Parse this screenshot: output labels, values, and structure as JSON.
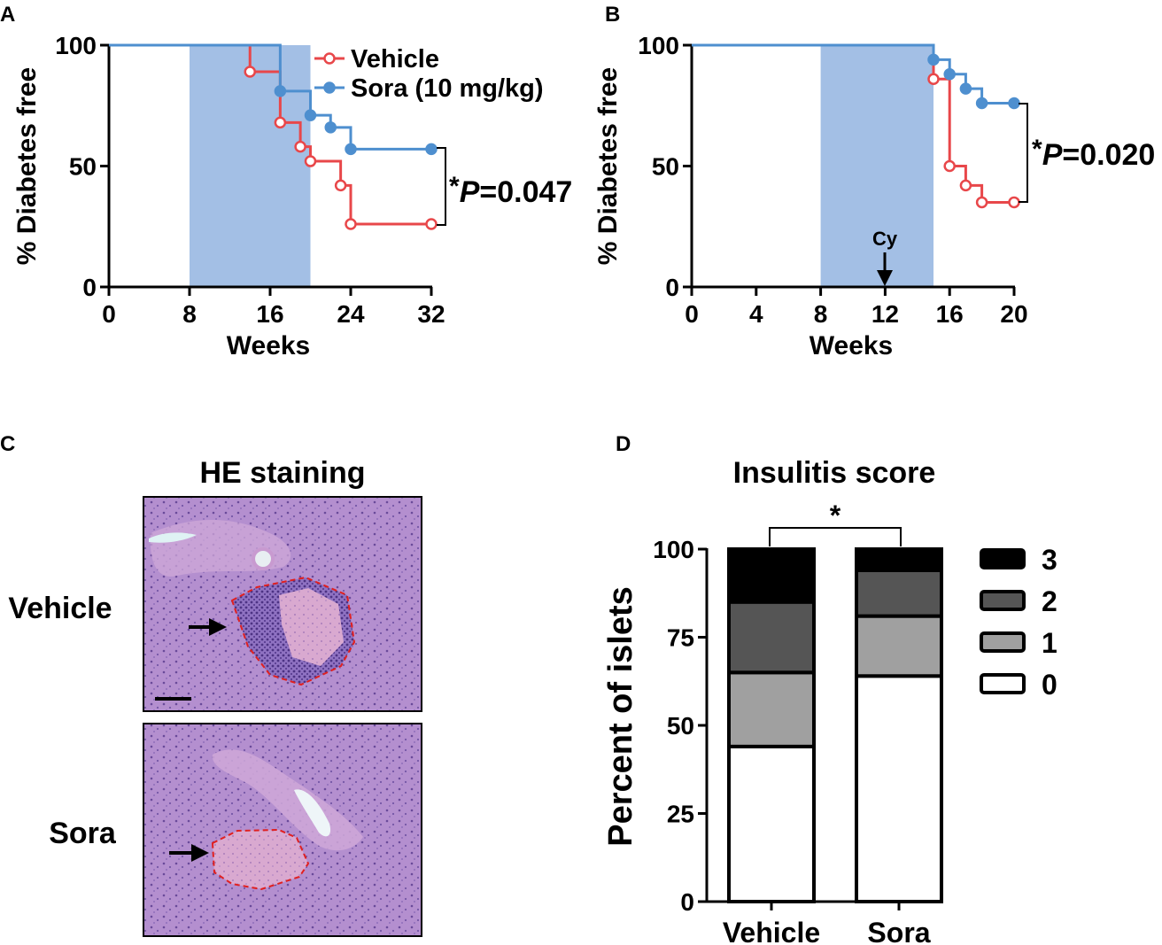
{
  "panels": {
    "a": {
      "letter": "A"
    },
    "b": {
      "letter": "B"
    },
    "c": {
      "letter": "C",
      "title": "HE staining",
      "row1": "Vehicle",
      "row2": "Sora"
    },
    "d": {
      "letter": "D"
    }
  },
  "colors": {
    "vehicle": "#e8474a",
    "sora": "#4e8fcf",
    "shade": "#a3bfe5",
    "score3": "#000000",
    "score2": "#555555",
    "score1": "#a0a0a0",
    "score0": "#ffffff"
  },
  "chart_data": [
    {
      "type": "line",
      "title": "",
      "xlabel": "Weeks",
      "ylabel": "% Diabetes free",
      "xlim": [
        0,
        32
      ],
      "ylim": [
        0,
        100
      ],
      "xticks": [
        "0",
        "8",
        "16",
        "24",
        "32"
      ],
      "yticks": [
        "0",
        "50",
        "100"
      ],
      "shaded_interval": [
        8,
        20
      ],
      "legend": [
        "Vehicle",
        "Sora (10 mg/kg)"
      ],
      "annotation": {
        "star": "*",
        "p": "P",
        "value": "=0.047"
      },
      "series": [
        {
          "name": "Vehicle",
          "x": [
            0,
            14,
            17,
            19,
            20,
            23,
            24,
            32
          ],
          "y": [
            100,
            89,
            68,
            58,
            52,
            42,
            26,
            26
          ]
        },
        {
          "name": "Sora (10 mg/kg)",
          "x": [
            0,
            17,
            20,
            22,
            24,
            32
          ],
          "y": [
            100,
            81,
            71,
            66,
            57,
            57
          ]
        }
      ]
    },
    {
      "type": "line",
      "title": "",
      "xlabel": "Weeks",
      "ylabel": "% Diabetes free",
      "xlim": [
        0,
        20
      ],
      "ylim": [
        0,
        100
      ],
      "xticks": [
        "0",
        "4",
        "8",
        "12",
        "16",
        "20"
      ],
      "yticks": [
        "0",
        "50",
        "100"
      ],
      "shaded_interval": [
        8,
        15
      ],
      "event": {
        "label": "Cy",
        "x": 12
      },
      "annotation": {
        "star": "*",
        "p": "P",
        "value": "=0.020"
      },
      "series": [
        {
          "name": "Vehicle",
          "x": [
            0,
            15,
            16,
            17,
            18,
            20
          ],
          "y": [
            100,
            86,
            50,
            42,
            35,
            35
          ]
        },
        {
          "name": "Sora",
          "x": [
            0,
            15,
            16,
            17,
            18,
            20
          ],
          "y": [
            100,
            94,
            88,
            82,
            76,
            76
          ]
        }
      ]
    },
    {
      "type": "bar",
      "stacked": true,
      "title": "Insulitis score",
      "xlabel": "",
      "ylabel": "Percent of islets",
      "ylim": [
        0,
        100
      ],
      "yticks": [
        "0",
        "25",
        "50",
        "75",
        "100"
      ],
      "categories": [
        "Vehicle",
        "Sora"
      ],
      "significance": "*",
      "legend": [
        "3",
        "2",
        "1",
        "0"
      ],
      "series": [
        {
          "name": "0",
          "values": [
            44,
            64
          ]
        },
        {
          "name": "1",
          "values": [
            21,
            17
          ]
        },
        {
          "name": "2",
          "values": [
            20,
            13
          ]
        },
        {
          "name": "3",
          "values": [
            15,
            6
          ]
        }
      ]
    }
  ]
}
